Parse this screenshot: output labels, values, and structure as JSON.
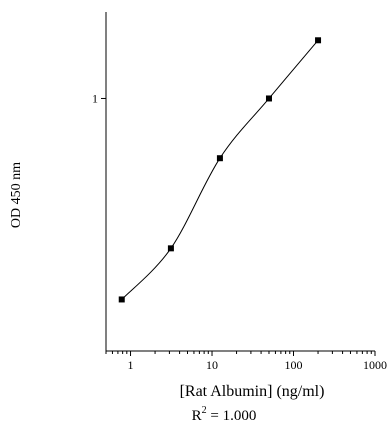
{
  "chart_data": {
    "type": "line",
    "title": "",
    "xlabel": "[Rat Albumin] (ng/ml)",
    "ylabel": "OD 450 nm",
    "x_scale": "log",
    "y_scale": "log",
    "xlim": [
      0.5,
      1000
    ],
    "ylim": [
      0.1,
      2.2
    ],
    "x_ticks": [
      1,
      10,
      100,
      1000
    ],
    "x_tick_labels": [
      "1",
      "10",
      "100",
      "1000"
    ],
    "y_ticks": [
      1
    ],
    "y_tick_labels": [
      "1"
    ],
    "grid": false,
    "legend": "none",
    "series": [
      {
        "x": [
          0.78,
          3.13,
          12.5,
          50,
          200
        ],
        "y": [
          0.16,
          0.255,
          0.58,
          1.0,
          1.7
        ]
      }
    ],
    "annotation": {
      "prefix": "R",
      "superscript": "2",
      "suffix": " = 1.000"
    },
    "colors": {
      "line": "#000000",
      "marker": "#000000",
      "axis": "#000000"
    }
  }
}
